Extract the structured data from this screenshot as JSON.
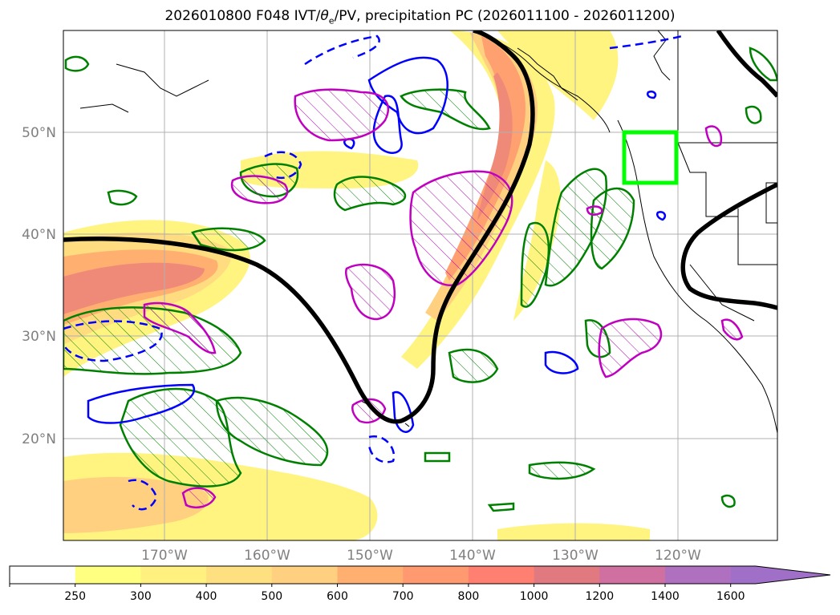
{
  "title": {
    "prefix": "2026010800 F048 IVT/",
    "theta_symbol": "θ",
    "theta_sub": "e",
    "suffix": "/PV, precipitation PC (2026011100 - 2026011200)"
  },
  "map": {
    "lon_labels": [
      "170°W",
      "160°W",
      "150°W",
      "140°W",
      "130°W",
      "120°W"
    ],
    "lat_labels": [
      "50°N",
      "40°N",
      "30°N",
      "20°N"
    ],
    "contour_colors": {
      "positive": "#008000",
      "negative": "#0000ff",
      "pv": "#c000c0",
      "theta_e": "#000000",
      "box": "#00ff00"
    }
  },
  "colorbar": {
    "levels": [
      "250",
      "300",
      "400",
      "500",
      "600",
      "700",
      "800",
      "1000",
      "1200",
      "1400",
      "1600"
    ],
    "colors": [
      "#ffffff",
      "#ffff80",
      "#fff080",
      "#ffe080",
      "#ffd080",
      "#ffb070",
      "#ff9a70",
      "#ff8070",
      "#e07a80",
      "#d070a0",
      "#b070c0",
      "#a070c8"
    ]
  }
}
